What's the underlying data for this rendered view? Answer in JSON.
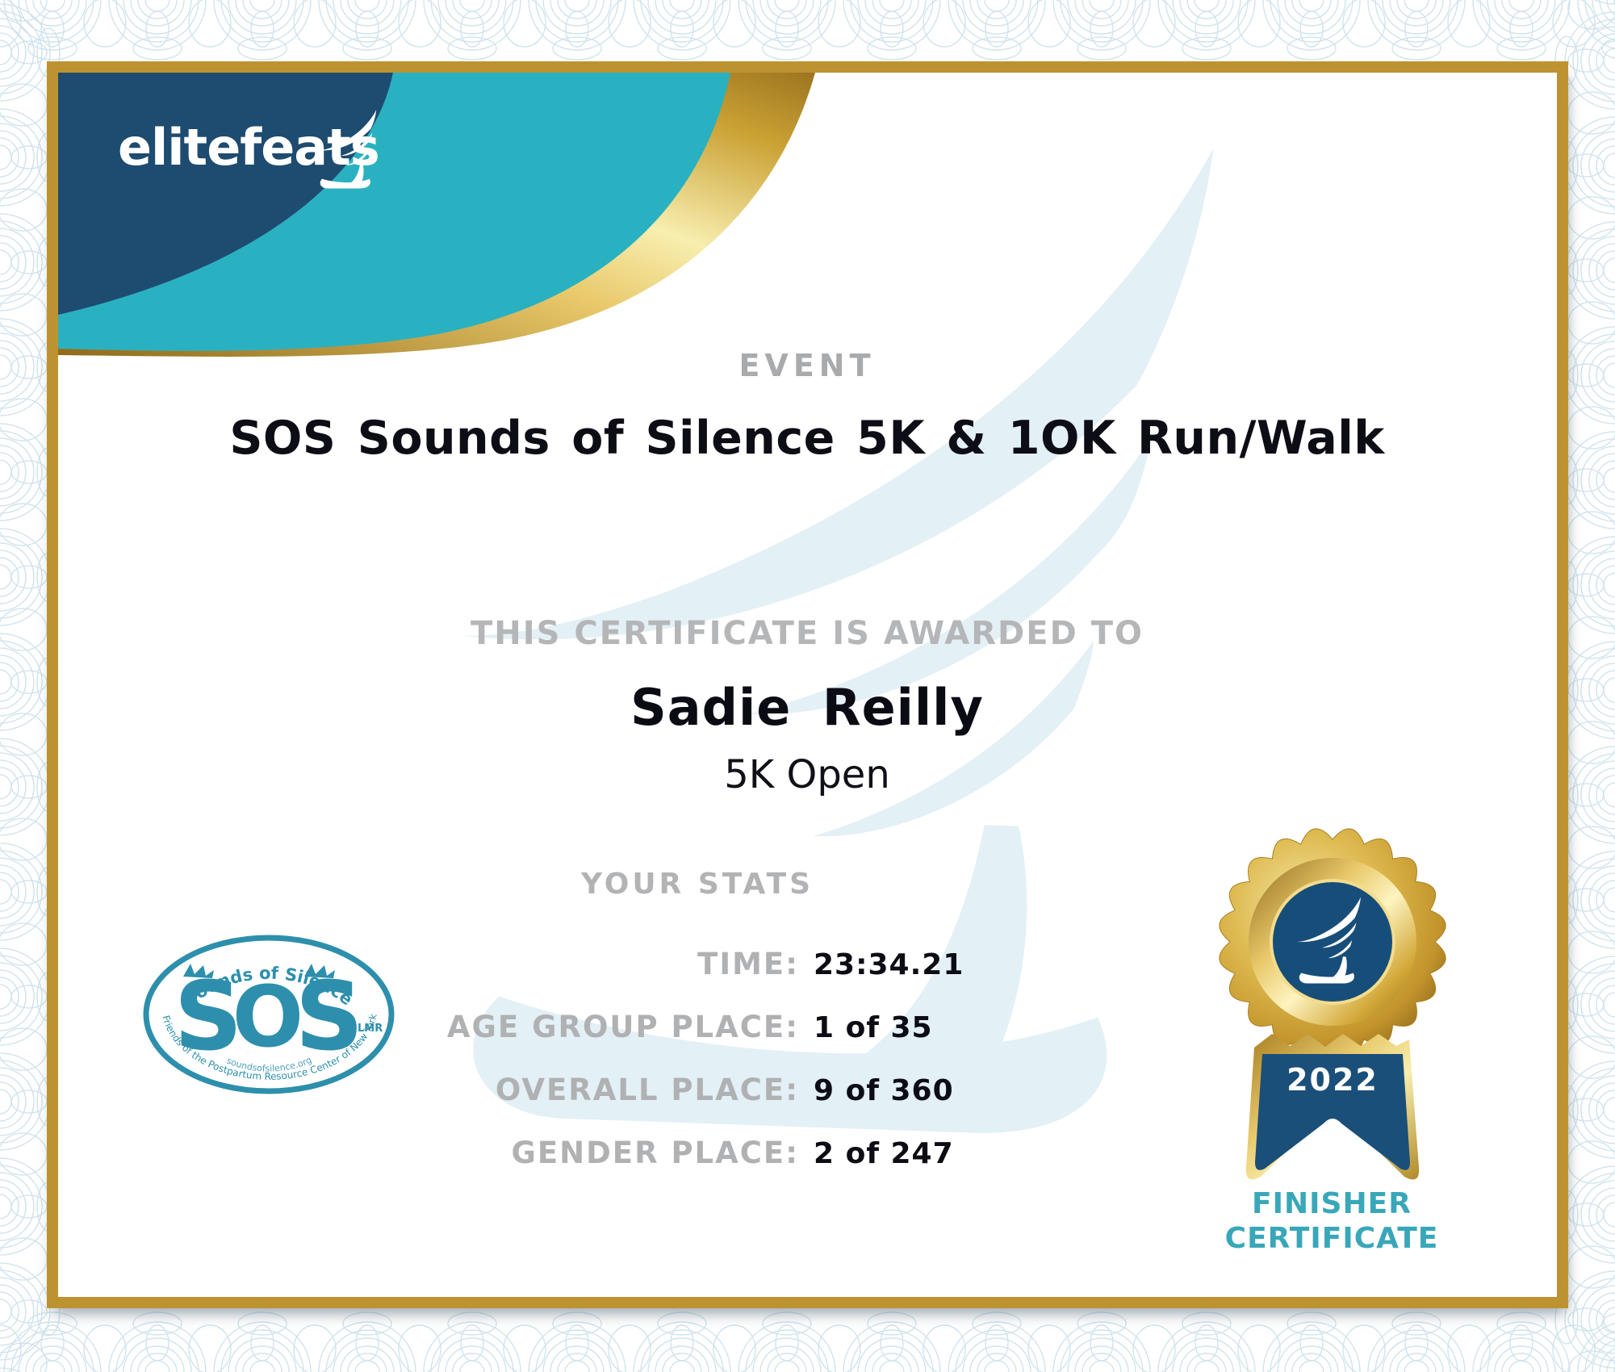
{
  "certificate": {
    "brand": {
      "logo_text": "elitefeats",
      "logo_icon": "winged-foot-icon"
    },
    "event": {
      "label": "EVENT",
      "title": "SOS Sounds of Silence 5K & 1OK Run/Walk"
    },
    "award": {
      "intro": "THIS CERTIFICATE IS AWARDED TO",
      "recipient": "Sadie Reilly",
      "division": "5K Open"
    },
    "stats": {
      "heading": "YOUR STATS",
      "rows": [
        {
          "label": "TIME:",
          "value": "23:34.21"
        },
        {
          "label": "AGE GROUP PLACE:",
          "value": "1 of 35"
        },
        {
          "label": "OVERALL PLACE:",
          "value": "9 of 360"
        },
        {
          "label": "GENDER PLACE:",
          "value": "2 of 247"
        }
      ]
    },
    "badge": {
      "year": "2022",
      "ribbon_line1": "FINISHER",
      "ribbon_line2": "CERTIFICATE",
      "icon": "winged-foot-icon"
    },
    "sos_logo": {
      "arc_top": "Sounds of Silence",
      "letters": [
        "S",
        "O",
        "S"
      ],
      "suffix": "LMR",
      "arc_bottom": "Friends of the Postpartum Resource Center of New York",
      "url": "soundsofsilence.org"
    },
    "colors": {
      "navy": "#1e4b70",
      "teal": "#2ab1c1",
      "frame_gold": "#bd9331",
      "gold_light": "#f6e7a6",
      "gold_dark": "#8f6a1a",
      "gray_text": "#b2b3b5",
      "finisher_teal": "#38a7b9",
      "sos_teal": "#2d8fac",
      "watermark_blue": "#e3f0f6",
      "guilloche_blue": "#cfe2ec"
    }
  }
}
